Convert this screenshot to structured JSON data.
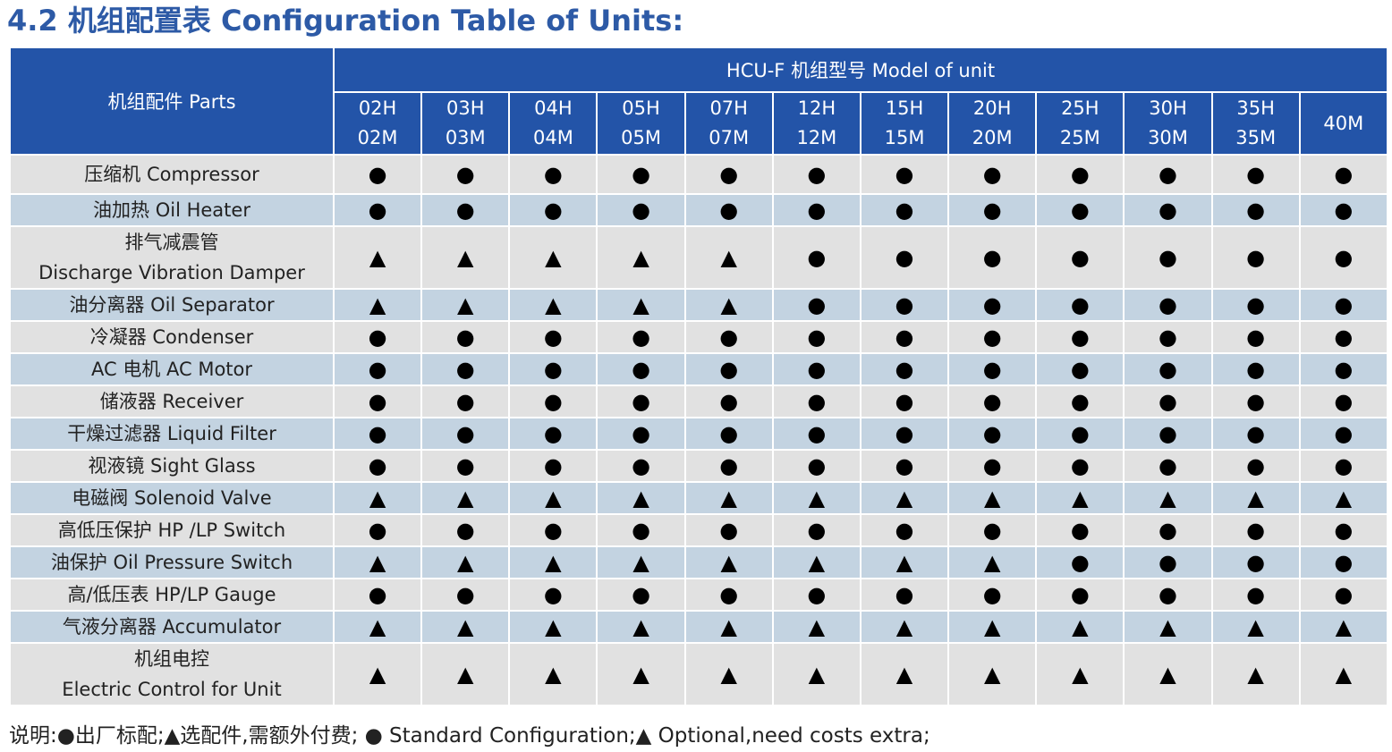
{
  "title": "4.2 机组配置表 Configuration Table of Units:",
  "header": {
    "parts_label": "机组配件 Parts",
    "model_group_label": "HCU-F 机组型号  Model of unit",
    "models": [
      {
        "line1": "02H",
        "line2": "02M"
      },
      {
        "line1": "03H",
        "line2": "03M"
      },
      {
        "line1": "04H",
        "line2": "04M"
      },
      {
        "line1": "05H",
        "line2": "05M"
      },
      {
        "line1": "07H",
        "line2": "07M"
      },
      {
        "line1": "12H",
        "line2": "12M"
      },
      {
        "line1": "15H",
        "line2": "15M"
      },
      {
        "line1": "20H",
        "line2": "20M"
      },
      {
        "line1": "25H",
        "line2": "25M"
      },
      {
        "line1": "30H",
        "line2": "30M"
      },
      {
        "line1": "35H",
        "line2": "35M"
      },
      {
        "line1": "40M",
        "line2": ""
      }
    ]
  },
  "rows": [
    {
      "part": "压缩机 Compressor",
      "values": [
        "●",
        "●",
        "●",
        "●",
        "●",
        "●",
        "●",
        "●",
        "●",
        "●",
        "●",
        "●"
      ]
    },
    {
      "part": "油加热 Oil Heater",
      "values": [
        "●",
        "●",
        "●",
        "●",
        "●",
        "●",
        "●",
        "●",
        "●",
        "●",
        "●",
        "●"
      ]
    },
    {
      "part": "排气减震管",
      "part2": "Discharge Vibration Damper",
      "values": [
        "▲",
        "▲",
        "▲",
        "▲",
        "▲",
        "●",
        "●",
        "●",
        "●",
        "●",
        "●",
        "●"
      ]
    },
    {
      "part": "油分离器 Oil Separator",
      "values": [
        "▲",
        "▲",
        "▲",
        "▲",
        "▲",
        "●",
        "●",
        "●",
        "●",
        "●",
        "●",
        "●"
      ]
    },
    {
      "part": "冷凝器 Condenser",
      "values": [
        "●",
        "●",
        "●",
        "●",
        "●",
        "●",
        "●",
        "●",
        "●",
        "●",
        "●",
        "●"
      ]
    },
    {
      "part": "AC 电机 AC Motor",
      "values": [
        "●",
        "●",
        "●",
        "●",
        "●",
        "●",
        "●",
        "●",
        "●",
        "●",
        "●",
        "●"
      ]
    },
    {
      "part": "储液器  Receiver",
      "values": [
        "●",
        "●",
        "●",
        "●",
        "●",
        "●",
        "●",
        "●",
        "●",
        "●",
        "●",
        "●"
      ]
    },
    {
      "part": "干燥过滤器  Liquid Filter",
      "values": [
        "●",
        "●",
        "●",
        "●",
        "●",
        "●",
        "●",
        "●",
        "●",
        "●",
        "●",
        "●"
      ]
    },
    {
      "part": "视液镜 Sight Glass",
      "values": [
        "●",
        "●",
        "●",
        "●",
        "●",
        "●",
        "●",
        "●",
        "●",
        "●",
        "●",
        "●"
      ]
    },
    {
      "part": "电磁阀 Solenoid Valve",
      "values": [
        "▲",
        "▲",
        "▲",
        "▲",
        "▲",
        "▲",
        "▲",
        "▲",
        "▲",
        "▲",
        "▲",
        "▲"
      ]
    },
    {
      "part": "高低压保护 HP /LP Switch",
      "values": [
        "●",
        "●",
        "●",
        "●",
        "●",
        "●",
        "●",
        "●",
        "●",
        "●",
        "●",
        "●"
      ]
    },
    {
      "part": "油保护 Oil Pressure Switch",
      "values": [
        "▲",
        "▲",
        "▲",
        "▲",
        "▲",
        "▲",
        "▲",
        "▲",
        "●",
        "●",
        "●",
        "●"
      ]
    },
    {
      "part": "高/低压表 HP/LP Gauge",
      "values": [
        "●",
        "●",
        "●",
        "●",
        "●",
        "●",
        "●",
        "●",
        "●",
        "●",
        "●",
        "●"
      ]
    },
    {
      "part": "气液分离器 Accumulator",
      "values": [
        "▲",
        "▲",
        "▲",
        "▲",
        "▲",
        "▲",
        "▲",
        "▲",
        "▲",
        "▲",
        "▲",
        "▲"
      ]
    },
    {
      "part": "机组电控",
      "part2": "Electric Control for Unit",
      "values": [
        "▲",
        "▲",
        "▲",
        "▲",
        "▲",
        "▲",
        "▲",
        "▲",
        "▲",
        "▲",
        "▲",
        "▲"
      ]
    }
  ],
  "legend": "说明:●出厂标配;▲选配件,需额外付费; ● Standard Configuration;▲ Optional,need costs extra;",
  "colors": {
    "title": "#2d5aa6",
    "header_bg": "#2354a8",
    "row_gray": "#e1e1e1",
    "row_blue": "#c3d3e1"
  }
}
